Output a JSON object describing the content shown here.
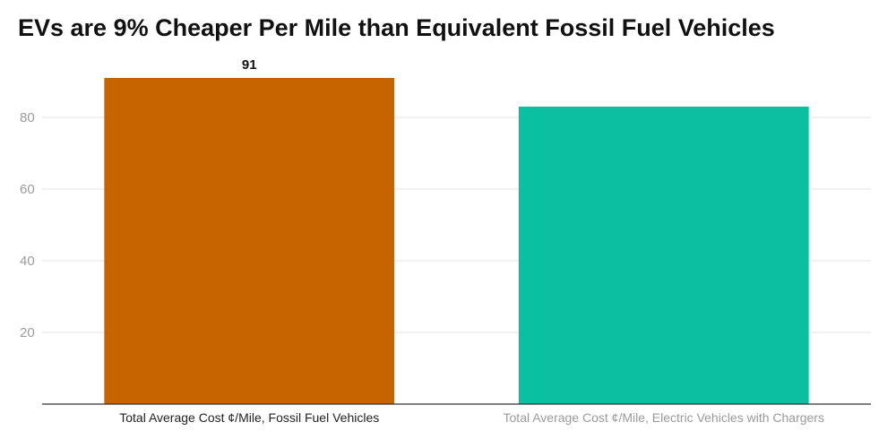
{
  "chart_data": {
    "type": "bar",
    "title": "EVs are 9% Cheaper Per Mile than Equivalent Fossil Fuel Vehicles",
    "categories": [
      "Total Average Cost ¢/Mile, Fossil Fuel Vehicles",
      "Total Average Cost ¢/Mile, Electric Vehicles with Chargers"
    ],
    "values": [
      91,
      83
    ],
    "colors": [
      "#c66400",
      "#0bbfa1"
    ],
    "category_label_colors": [
      "#222222",
      "#9a9a9a"
    ],
    "data_labels": [
      "91",
      ""
    ],
    "ylim": [
      0,
      100
    ],
    "yticks": [
      20,
      40,
      60,
      80
    ],
    "grid": true,
    "legend": "none",
    "xlabel": "",
    "ylabel": ""
  }
}
